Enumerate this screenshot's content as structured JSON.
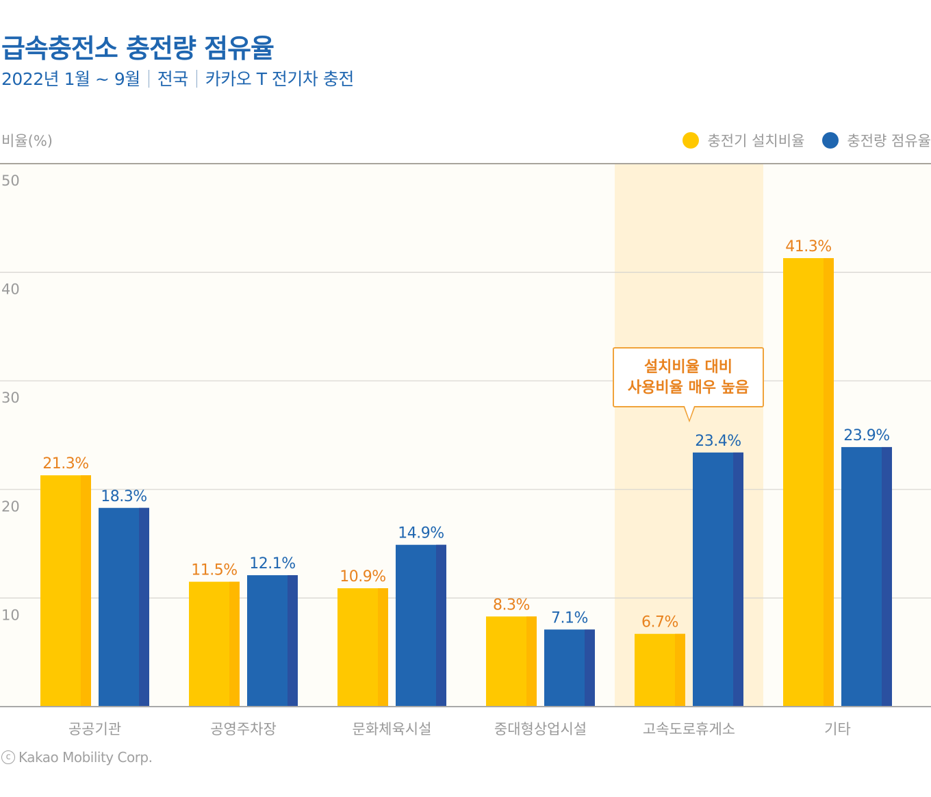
{
  "header": {
    "title": "급속충전소 충전량 점유율",
    "subtitle_parts": [
      "2022년 1월 ~ 9월",
      "전국",
      "카카오 T 전기차 충전"
    ]
  },
  "legend": {
    "items": [
      {
        "label": "충전기 설치비율",
        "color": "#ffc800"
      },
      {
        "label": "충전량 점유율",
        "color": "#1f66b0"
      }
    ]
  },
  "callout": {
    "lines": [
      "설치비율 대비",
      "사용비율 매우 높음"
    ],
    "target_category": "고속도로휴게소",
    "color": "#e8821e"
  },
  "footer": {
    "copyright_symbol": "c",
    "text": "Kakao Mobility Corp."
  },
  "colors": {
    "install_bar": "#ffc800",
    "install_bar_shade": "#ffb800",
    "install_label": "#e8821e",
    "share_bar": "#2166b1",
    "share_bar_shade": "#2a50a0",
    "share_label": "#1f66b0",
    "highlight_band": "#fff2d6",
    "plot_background": "#fefdf8"
  },
  "chart_data": {
    "type": "bar",
    "title": "급속충전소 충전량 점유율",
    "subtitle": "2022년 1월 ~ 9월 | 전국 | 카카오 T 전기차 충전",
    "xlabel": "",
    "ylabel": "비율(%)",
    "ylim": [
      0,
      50
    ],
    "yticks": [
      10,
      20,
      30,
      40,
      50
    ],
    "grid": true,
    "legend_position": "top-right",
    "categories": [
      "공공기관",
      "공영주차장",
      "문화체육시설",
      "중대형상업시설",
      "고속도로휴게소",
      "기타"
    ],
    "highlighted_category": "고속도로휴게소",
    "series": [
      {
        "name": "충전기 설치비율",
        "values": [
          21.3,
          11.5,
          10.9,
          8.3,
          6.7,
          41.3
        ],
        "labels": [
          "21.3%",
          "11.5%",
          "10.9%",
          "8.3%",
          "6.7%",
          "41.3%"
        ]
      },
      {
        "name": "충전량 점유율",
        "values": [
          18.3,
          12.1,
          14.9,
          7.1,
          23.4,
          23.9
        ],
        "labels": [
          "18.3%",
          "12.1%",
          "14.9%",
          "7.1%",
          "23.4%",
          "23.9%"
        ]
      }
    ]
  }
}
